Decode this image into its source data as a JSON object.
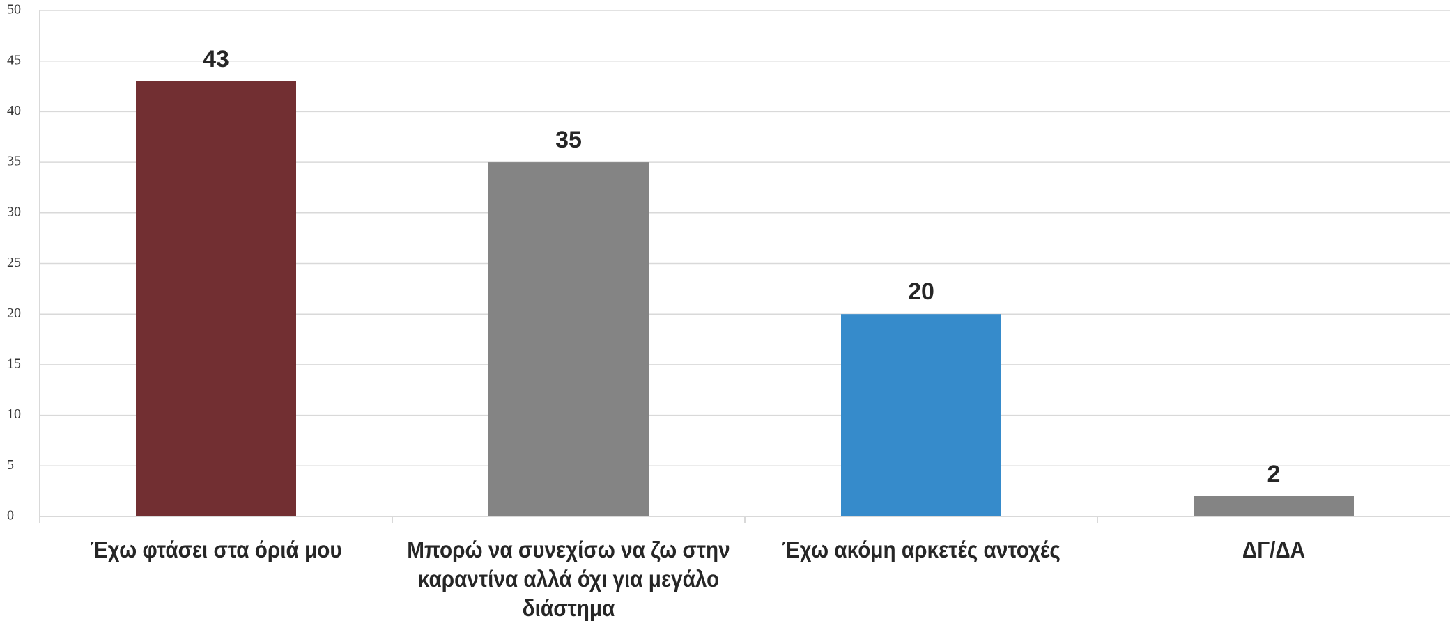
{
  "chart_data": {
    "type": "bar",
    "categories": [
      "Έχω φτάσει στα όριά μου",
      "Μπορώ να συνεχίσω να ζω στην καραντίνα αλλά όχι για μεγάλο διάστημα",
      "Έχω ακόμη αρκετές αντοχές",
      "ΔΓ/ΔΑ"
    ],
    "values": [
      43,
      35,
      20,
      2
    ],
    "colors": [
      "#722f32",
      "#848484",
      "#368bcb",
      "#848484"
    ],
    "ylim": [
      0,
      50
    ],
    "yticks": [
      0,
      5,
      10,
      15,
      20,
      25,
      30,
      35,
      40,
      45,
      50
    ],
    "grid": true
  }
}
